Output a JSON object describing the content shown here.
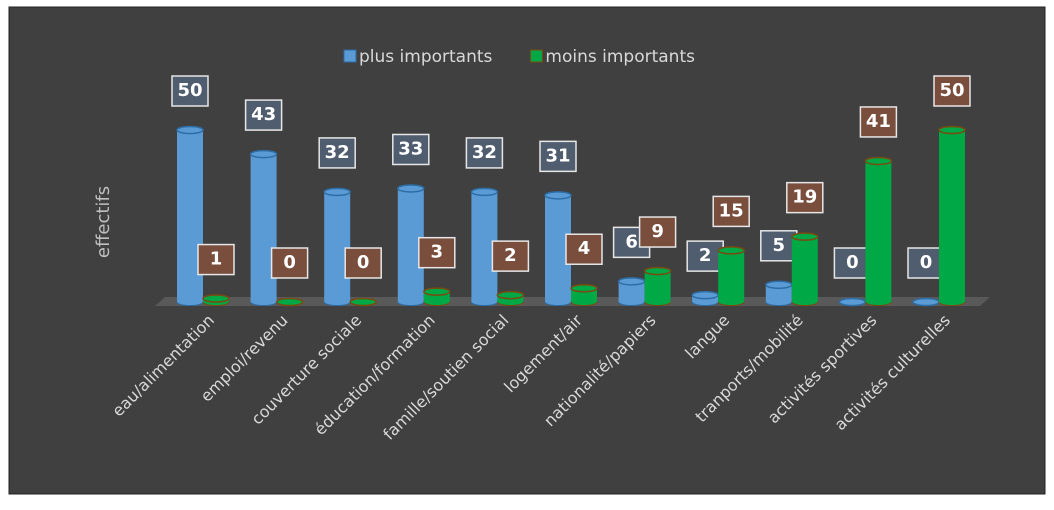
{
  "chart_data": {
    "type": "bar",
    "y_label": "effectifs",
    "categories": [
      "eau/alimentation",
      "emploi/revenu",
      "couverture sociale",
      "éducation/formation",
      "famille/soutien social",
      "logement/air",
      "nationalité/papiers",
      "langue",
      "tranports/mobilité",
      "activités sportives",
      "activités culturelles"
    ],
    "series": [
      {
        "name": "plus importants",
        "color": "#5b9bd5",
        "values": [
          50,
          43,
          32,
          33,
          32,
          31,
          6,
          2,
          5,
          0,
          0
        ]
      },
      {
        "name": "moins importants",
        "color": "#00a846",
        "values": [
          1,
          0,
          0,
          3,
          2,
          4,
          9,
          15,
          19,
          41,
          50
        ]
      }
    ],
    "legend": "top"
  }
}
